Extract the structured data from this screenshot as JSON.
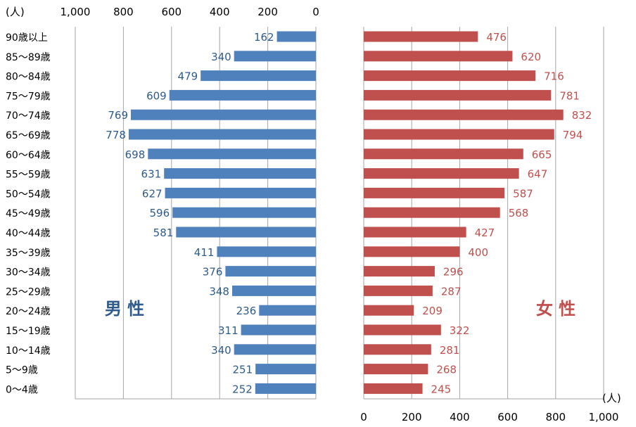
{
  "chart_data": {
    "type": "bar",
    "orientation": "horizontal",
    "layout": "population-pyramid",
    "unit": "(人)",
    "categories": [
      "90歳以上",
      "85～89歳",
      "80～84歳",
      "75～79歳",
      "70～74歳",
      "65～69歳",
      "60～64歳",
      "55～59歳",
      "50～54歳",
      "45～49歳",
      "40～44歳",
      "35～39歳",
      "30～34歳",
      "25～29歳",
      "20～24歳",
      "15～19歳",
      "10～14歳",
      "5～9歳",
      "0～4歳"
    ],
    "series": [
      {
        "name": "男 性",
        "side": "left",
        "color": "#4f81bd",
        "label_color": "#2e5b8c",
        "values": [
          162,
          340,
          479,
          609,
          769,
          778,
          698,
          631,
          627,
          596,
          581,
          411,
          376,
          348,
          236,
          311,
          340,
          251,
          252
        ]
      },
      {
        "name": "女 性",
        "side": "right",
        "color": "#c0504d",
        "label_color": "#c0504d",
        "values": [
          476,
          620,
          716,
          781,
          832,
          794,
          665,
          647,
          587,
          568,
          427,
          400,
          296,
          287,
          209,
          322,
          281,
          268,
          245
        ]
      }
    ],
    "xlim": [
      0,
      1000
    ],
    "ticks": [
      "1,000",
      "800",
      "600",
      "400",
      "200",
      "0"
    ],
    "ticks_right": [
      "0",
      "200",
      "400",
      "600",
      "800",
      "1,000"
    ],
    "grid": true,
    "legend": "none"
  }
}
